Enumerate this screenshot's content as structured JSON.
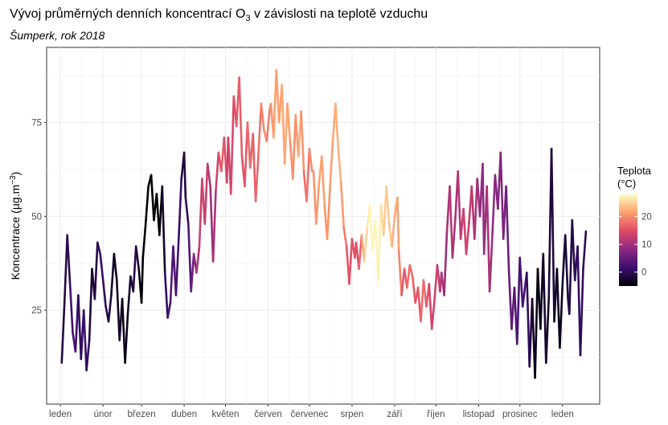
{
  "chart_data": {
    "type": "line",
    "title_main": "Vývoj průměrných denních koncentrací O",
    "title_sub": "3",
    "title_rest": " v závislosti na teplotě vzduchu",
    "subtitle": "Šumperk, rok 2018",
    "ylabel_main": "Koncentrace (µg.m",
    "ylabel_sup": "−3",
    "ylabel_end": ")",
    "ylim": [
      0,
      95
    ],
    "yticks": [
      25,
      50,
      75
    ],
    "xticks": [
      "leden",
      "únor",
      "březen",
      "duben",
      "květen",
      "červen",
      "červenec",
      "srpen",
      "září",
      "říjen",
      "listopad",
      "prosinec",
      "leden"
    ],
    "grid": true,
    "legend": {
      "title_line1": "Teplota",
      "title_line2": "(°C)",
      "ticks": [
        0,
        10,
        20
      ],
      "range": [
        -5,
        28
      ],
      "placement": "right"
    },
    "colors": {
      "scale": [
        "#000004",
        "#3b0f70",
        "#8c2981",
        "#de4968",
        "#fe9f6d",
        "#fcfdbf"
      ]
    },
    "series": [
      {
        "month": "leden",
        "points": [
          [
            1,
            11,
            -1
          ],
          [
            3,
            27,
            -1
          ],
          [
            5,
            45,
            -1
          ],
          [
            7,
            32,
            1
          ],
          [
            9,
            19,
            3
          ],
          [
            11,
            14,
            2
          ],
          [
            13,
            29,
            1
          ],
          [
            15,
            12,
            0
          ],
          [
            17,
            25,
            1
          ],
          [
            19,
            9,
            2
          ],
          [
            21,
            17,
            -1
          ],
          [
            23,
            36,
            -2
          ],
          [
            25,
            28,
            -2
          ],
          [
            27,
            43,
            0
          ],
          [
            29,
            40,
            1
          ],
          [
            31,
            33,
            1
          ]
        ]
      },
      {
        "month": "únor",
        "points": [
          [
            33,
            26,
            0
          ],
          [
            35,
            22,
            -1
          ],
          [
            37,
            29,
            -2
          ],
          [
            39,
            40,
            -3
          ],
          [
            41,
            33,
            -4
          ],
          [
            43,
            17,
            -2
          ],
          [
            45,
            28,
            -3
          ],
          [
            47,
            11,
            -4
          ],
          [
            49,
            24,
            -3
          ],
          [
            51,
            34,
            -2
          ],
          [
            53,
            30,
            -1
          ],
          [
            55,
            42,
            0
          ],
          [
            57,
            36,
            -3
          ],
          [
            59,
            27,
            -5
          ]
        ]
      },
      {
        "month": "březen",
        "points": [
          [
            60,
            39,
            -6
          ],
          [
            62,
            48,
            -7
          ],
          [
            64,
            58,
            -8
          ],
          [
            66,
            61,
            -9
          ],
          [
            68,
            49,
            -10
          ],
          [
            70,
            56,
            -8
          ],
          [
            72,
            45,
            -6
          ],
          [
            74,
            58,
            -4
          ],
          [
            76,
            35,
            -1
          ],
          [
            78,
            23,
            2
          ],
          [
            80,
            27,
            3
          ],
          [
            82,
            42,
            4
          ],
          [
            84,
            29,
            3
          ],
          [
            86,
            44,
            2
          ],
          [
            88,
            60,
            0
          ],
          [
            90,
            67,
            -2
          ]
        ]
      },
      {
        "month": "duben",
        "points": [
          [
            91,
            55,
            -1
          ],
          [
            93,
            48,
            2
          ],
          [
            95,
            30,
            4
          ],
          [
            97,
            40,
            7
          ],
          [
            99,
            35,
            10
          ],
          [
            101,
            42,
            12
          ],
          [
            103,
            60,
            14
          ],
          [
            105,
            48,
            13
          ],
          [
            107,
            64,
            13
          ],
          [
            109,
            58,
            10
          ],
          [
            111,
            38,
            9
          ],
          [
            113,
            57,
            12
          ],
          [
            115,
            67,
            15
          ],
          [
            117,
            62,
            16
          ],
          [
            119,
            71,
            17
          ],
          [
            121,
            59,
            14
          ]
        ]
      },
      {
        "month": "květen",
        "points": [
          [
            122,
            71,
            13
          ],
          [
            124,
            56,
            14
          ],
          [
            126,
            82,
            15
          ],
          [
            128,
            74,
            16
          ],
          [
            130,
            87,
            17
          ],
          [
            132,
            66,
            16
          ],
          [
            134,
            58,
            15
          ],
          [
            136,
            75,
            17
          ],
          [
            138,
            63,
            18
          ],
          [
            140,
            72,
            16
          ],
          [
            142,
            54,
            17
          ],
          [
            144,
            67,
            17
          ],
          [
            146,
            80,
            19
          ],
          [
            148,
            73,
            20
          ],
          [
            150,
            70,
            20
          ],
          [
            152,
            78,
            18
          ]
        ]
      },
      {
        "month": "červen",
        "points": [
          [
            153,
            80,
            20
          ],
          [
            155,
            71,
            21
          ],
          [
            157,
            89,
            22
          ],
          [
            159,
            75,
            21
          ],
          [
            161,
            85,
            22
          ],
          [
            163,
            64,
            22
          ],
          [
            165,
            80,
            22
          ],
          [
            167,
            70,
            21
          ],
          [
            169,
            60,
            20
          ],
          [
            171,
            77,
            20
          ],
          [
            173,
            66,
            22
          ],
          [
            175,
            78,
            23
          ],
          [
            177,
            62,
            18
          ],
          [
            179,
            54,
            17
          ],
          [
            181,
            68,
            19
          ],
          [
            183,
            62,
            21
          ]
        ]
      },
      {
        "month": "červenec",
        "points": [
          [
            184,
            62,
            20
          ],
          [
            186,
            48,
            21
          ],
          [
            188,
            59,
            21
          ],
          [
            190,
            66,
            22
          ],
          [
            192,
            53,
            21
          ],
          [
            194,
            44,
            20
          ],
          [
            196,
            58,
            21
          ],
          [
            198,
            70,
            22
          ],
          [
            200,
            80,
            22
          ],
          [
            202,
            68,
            23
          ],
          [
            204,
            59,
            22
          ],
          [
            206,
            47,
            20
          ],
          [
            208,
            42,
            17
          ],
          [
            210,
            32,
            15
          ],
          [
            212,
            44,
            16
          ],
          [
            214,
            39,
            15
          ]
        ]
      },
      {
        "month": "srpen",
        "points": [
          [
            215,
            43,
            16
          ],
          [
            217,
            36,
            14
          ],
          [
            219,
            45,
            20
          ],
          [
            221,
            38,
            24
          ],
          [
            223,
            47,
            26
          ],
          [
            225,
            53,
            27
          ],
          [
            227,
            41,
            28
          ],
          [
            229,
            49,
            27
          ],
          [
            231,
            33,
            28
          ],
          [
            233,
            53,
            26
          ],
          [
            235,
            45,
            25
          ],
          [
            237,
            58,
            24
          ],
          [
            239,
            48,
            25
          ],
          [
            241,
            42,
            23
          ],
          [
            243,
            50,
            22
          ],
          [
            245,
            55,
            22
          ]
        ]
      },
      {
        "month": "září",
        "points": [
          [
            246,
            41,
            21
          ],
          [
            248,
            29,
            17
          ],
          [
            250,
            36,
            15
          ],
          [
            252,
            31,
            17
          ],
          [
            254,
            37,
            18
          ],
          [
            256,
            34,
            17
          ],
          [
            258,
            27,
            16
          ],
          [
            260,
            31,
            15
          ],
          [
            262,
            22,
            17
          ],
          [
            264,
            33,
            18
          ],
          [
            266,
            26,
            17
          ],
          [
            268,
            32,
            15
          ],
          [
            270,
            20,
            13
          ],
          [
            272,
            28,
            14
          ],
          [
            274,
            37,
            13
          ],
          [
            276,
            30,
            12
          ]
        ]
      },
      {
        "month": "říjen",
        "points": [
          [
            277,
            35,
            11
          ],
          [
            279,
            29,
            10
          ],
          [
            281,
            46,
            9
          ],
          [
            283,
            58,
            12
          ],
          [
            285,
            39,
            11
          ],
          [
            287,
            49,
            10
          ],
          [
            289,
            62,
            11
          ],
          [
            291,
            44,
            12
          ],
          [
            293,
            52,
            13
          ],
          [
            295,
            40,
            14
          ],
          [
            297,
            48,
            13
          ],
          [
            299,
            58,
            12
          ],
          [
            301,
            44,
            11
          ],
          [
            303,
            60,
            10
          ],
          [
            305,
            50,
            9
          ],
          [
            307,
            64,
            8
          ]
        ]
      },
      {
        "month": "listopad",
        "points": [
          [
            308,
            40,
            9
          ],
          [
            310,
            58,
            10
          ],
          [
            312,
            30,
            11
          ],
          [
            314,
            45,
            9
          ],
          [
            316,
            61,
            8
          ],
          [
            318,
            52,
            7
          ],
          [
            320,
            67,
            8
          ],
          [
            322,
            44,
            7
          ],
          [
            324,
            58,
            6
          ],
          [
            326,
            36,
            5
          ],
          [
            328,
            20,
            5
          ],
          [
            330,
            31,
            4
          ],
          [
            332,
            16,
            3
          ],
          [
            334,
            39,
            2
          ],
          [
            336,
            26,
            3
          ],
          [
            338,
            32,
            2
          ]
        ]
      },
      {
        "month": "prosinec",
        "points": [
          [
            339,
            35,
            1
          ],
          [
            341,
            10,
            0
          ],
          [
            343,
            28,
            -2
          ],
          [
            345,
            7,
            -3
          ],
          [
            347,
            36,
            -5
          ],
          [
            349,
            20,
            -4
          ],
          [
            351,
            40,
            -3
          ],
          [
            353,
            11,
            -2
          ],
          [
            355,
            28,
            -3
          ],
          [
            357,
            68,
            -1
          ],
          [
            359,
            22,
            -2
          ],
          [
            361,
            36,
            -3
          ],
          [
            363,
            15,
            -4
          ],
          [
            365,
            32,
            -3
          ],
          [
            367,
            45,
            -2
          ],
          [
            369,
            28,
            -1
          ]
        ]
      },
      {
        "month": "prosinec-end",
        "points": [
          [
            370,
            24,
            -1
          ],
          [
            372,
            49,
            -1
          ],
          [
            374,
            33,
            0
          ],
          [
            376,
            42,
            1
          ],
          [
            378,
            13,
            0
          ],
          [
            380,
            36,
            1
          ],
          [
            382,
            46,
            -1
          ]
        ]
      }
    ]
  }
}
